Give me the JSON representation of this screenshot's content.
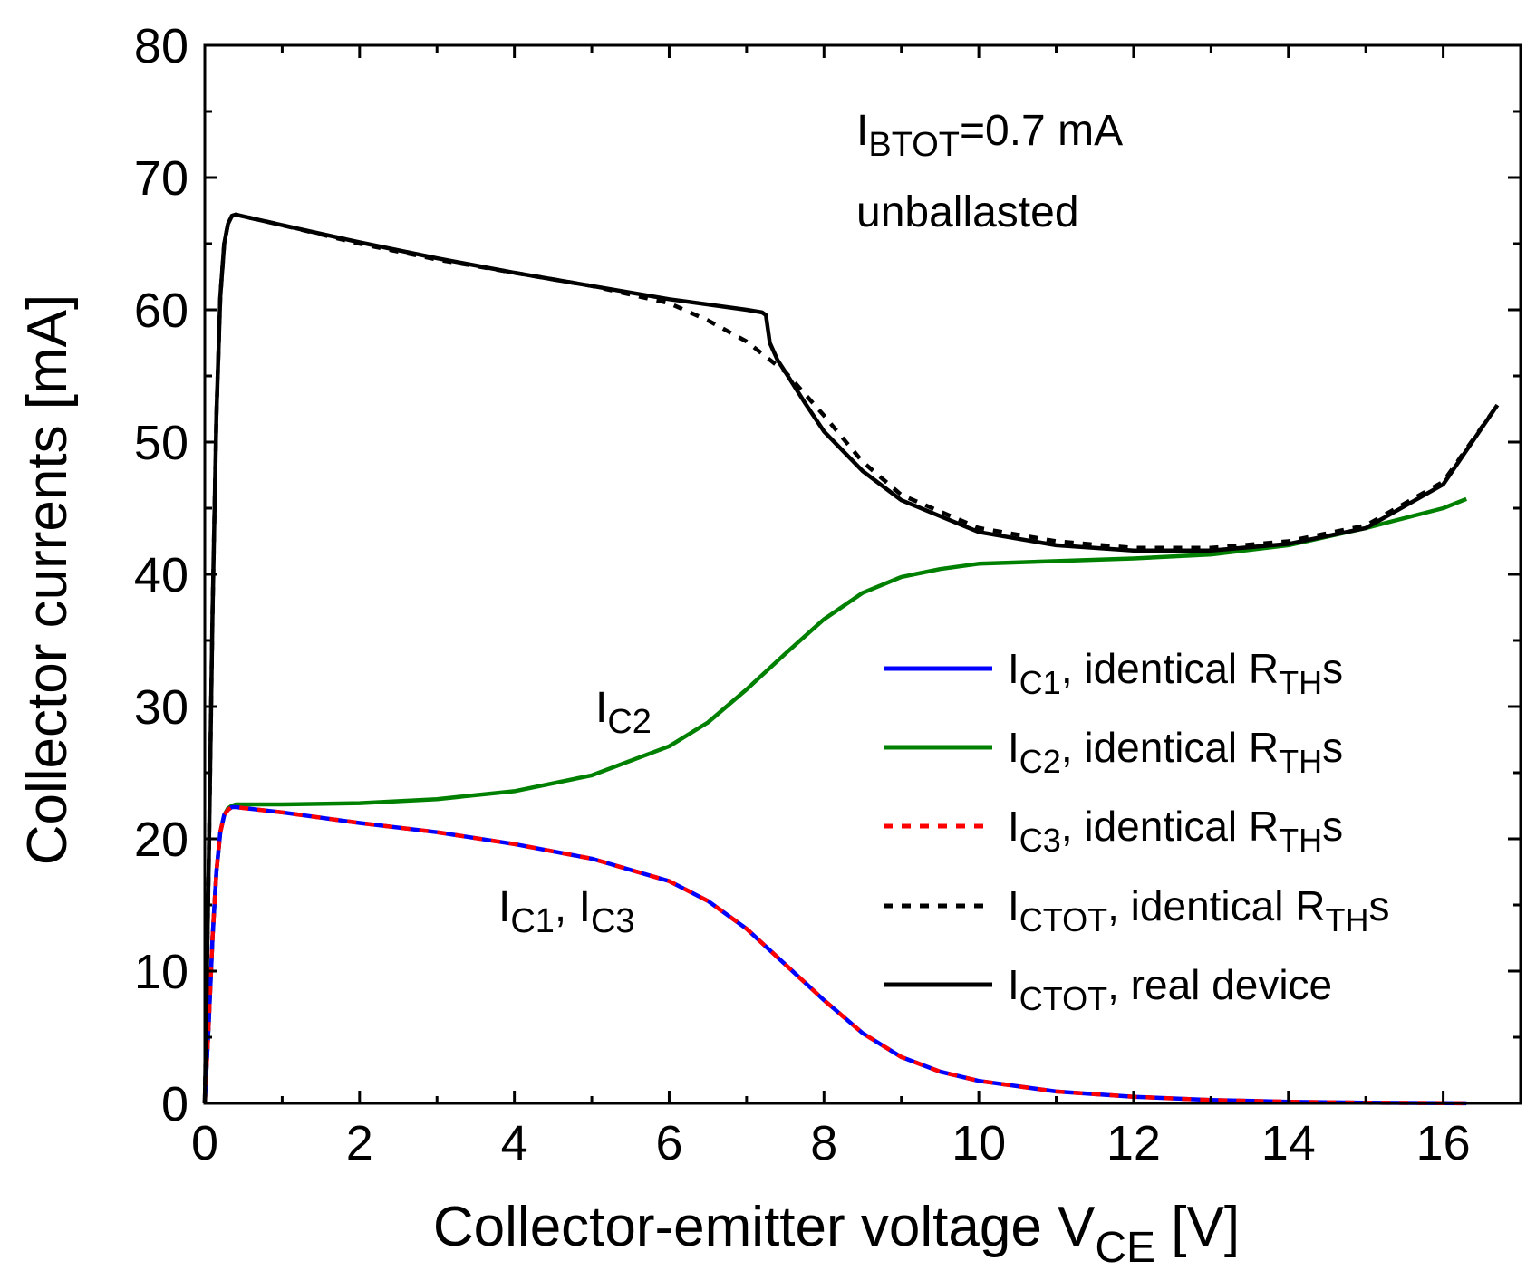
{
  "chart_data": {
    "type": "line",
    "xlabel": "Collector-emitter voltage V",
    "xlabel_sub": "CE",
    "xlabel_unit": " [V]",
    "ylabel": "Collector currents [mA]",
    "xlim": [
      0,
      17
    ],
    "ylim": [
      0,
      80
    ],
    "xticks": [
      0,
      2,
      4,
      6,
      8,
      10,
      12,
      14,
      16
    ],
    "yticks": [
      0,
      10,
      20,
      30,
      40,
      50,
      60,
      70,
      80
    ],
    "grid": false,
    "legend_position": "right",
    "annotations": {
      "condition_main": "I",
      "condition_sub": "BTOT",
      "condition_value": "=0.7 mA",
      "condition_line2": "unballasted",
      "ic2_main": "I",
      "ic2_sub": "C2",
      "ic13_main1": "I",
      "ic13_sub1": "C1",
      "ic13_sep": ", I",
      "ic13_sub2": "C3"
    },
    "series": [
      {
        "name": "IC1, identical RTHs",
        "legend_main": "I",
        "legend_sub": "C1",
        "legend_mid": ", identical R",
        "legend_sub2": "TH",
        "legend_end": "s",
        "color": "#0000ff",
        "dash": "none",
        "x": [
          0,
          0.05,
          0.1,
          0.15,
          0.2,
          0.25,
          0.3,
          0.35,
          0.4,
          1,
          2,
          3,
          4,
          5,
          6,
          6.5,
          7,
          7.5,
          8,
          8.5,
          9,
          9.5,
          10,
          11,
          12,
          13,
          14,
          15,
          16,
          16.3
        ],
        "y": [
          0,
          6,
          12.5,
          17.5,
          20.5,
          21.8,
          22.2,
          22.4,
          22.4,
          22.0,
          21.2,
          20.5,
          19.6,
          18.5,
          16.8,
          15.3,
          13.2,
          10.5,
          7.8,
          5.3,
          3.5,
          2.4,
          1.7,
          0.9,
          0.5,
          0.25,
          0.12,
          0.05,
          0.02,
          0.01
        ]
      },
      {
        "name": "IC2, identical RTHs",
        "legend_main": "I",
        "legend_sub": "C2",
        "legend_mid": ", identical R",
        "legend_sub2": "TH",
        "legend_end": "s",
        "color": "#008000",
        "dash": "none",
        "x": [
          0,
          0.05,
          0.1,
          0.15,
          0.2,
          0.25,
          0.3,
          0.35,
          0.4,
          1,
          2,
          3,
          4,
          5,
          6,
          6.5,
          7,
          7.5,
          8,
          8.5,
          9,
          9.5,
          10,
          11,
          12,
          13,
          14,
          15,
          16,
          16.3
        ],
        "y": [
          0,
          6,
          12.5,
          17.5,
          20.5,
          21.8,
          22.3,
          22.5,
          22.6,
          22.6,
          22.7,
          23.0,
          23.6,
          24.8,
          27.0,
          28.8,
          31.3,
          34.0,
          36.6,
          38.6,
          39.8,
          40.4,
          40.8,
          41.0,
          41.2,
          41.5,
          42.2,
          43.5,
          45.0,
          45.7
        ]
      },
      {
        "name": "IC3, identical RTHs",
        "legend_main": "I",
        "legend_sub": "C3",
        "legend_mid": ", identical R",
        "legend_sub2": "TH",
        "legend_end": "s",
        "color": "#ff0000",
        "dash": "10,10",
        "x": [
          0,
          0.05,
          0.1,
          0.15,
          0.2,
          0.25,
          0.3,
          0.35,
          0.4,
          1,
          2,
          3,
          4,
          5,
          6,
          6.5,
          7,
          7.5,
          8,
          8.5,
          9,
          9.5,
          10,
          11,
          12,
          13,
          14,
          15,
          16,
          16.3
        ],
        "y": [
          0,
          6,
          12.5,
          17.5,
          20.5,
          21.8,
          22.2,
          22.4,
          22.4,
          22.0,
          21.2,
          20.5,
          19.6,
          18.5,
          16.8,
          15.3,
          13.2,
          10.5,
          7.8,
          5.3,
          3.5,
          2.4,
          1.7,
          0.9,
          0.5,
          0.25,
          0.12,
          0.05,
          0.02,
          0.01
        ]
      },
      {
        "name": "ICTOT, identical RTHs",
        "legend_main": "I",
        "legend_sub": "CTOT",
        "legend_mid": ", identical R",
        "legend_sub2": "TH",
        "legend_end": "s",
        "color": "#000000",
        "dash": "10,10",
        "x": [
          0,
          0.05,
          0.1,
          0.15,
          0.2,
          0.25,
          0.3,
          0.35,
          0.4,
          1,
          2,
          3,
          4,
          5,
          6,
          6.5,
          7,
          7.5,
          8,
          8.5,
          9,
          10,
          11,
          12,
          13,
          14,
          15,
          16,
          16.7
        ],
        "y": [
          0,
          18,
          37,
          52,
          61,
          65,
          66.5,
          67.1,
          67.2,
          66.4,
          65.0,
          63.8,
          62.8,
          61.8,
          60.5,
          59.2,
          57.6,
          55.3,
          52.0,
          48.5,
          46.0,
          43.5,
          42.5,
          42.0,
          42.0,
          42.5,
          43.7,
          47.0,
          52.8
        ]
      },
      {
        "name": "ICTOT, real device",
        "legend_main": "I",
        "legend_sub": "CTOT",
        "legend_mid": ", real device",
        "legend_sub2": "",
        "legend_end": "",
        "color": "#000000",
        "dash": "none",
        "x": [
          0,
          0.05,
          0.1,
          0.15,
          0.2,
          0.25,
          0.3,
          0.35,
          0.4,
          1,
          2,
          3,
          4,
          5,
          6,
          7,
          7.2,
          7.25,
          7.3,
          7.4,
          7.5,
          7.75,
          8,
          8.5,
          9,
          10,
          11,
          12,
          13,
          14,
          15,
          16,
          16.7
        ],
        "y": [
          0,
          18,
          37,
          52,
          61,
          65,
          66.5,
          67.1,
          67.2,
          66.4,
          65.1,
          63.9,
          62.8,
          61.8,
          60.8,
          60.0,
          59.8,
          59.6,
          57.5,
          56.2,
          55.3,
          53.0,
          50.8,
          47.8,
          45.6,
          43.2,
          42.2,
          41.8,
          41.8,
          42.3,
          43.5,
          46.8,
          52.8
        ]
      }
    ]
  }
}
